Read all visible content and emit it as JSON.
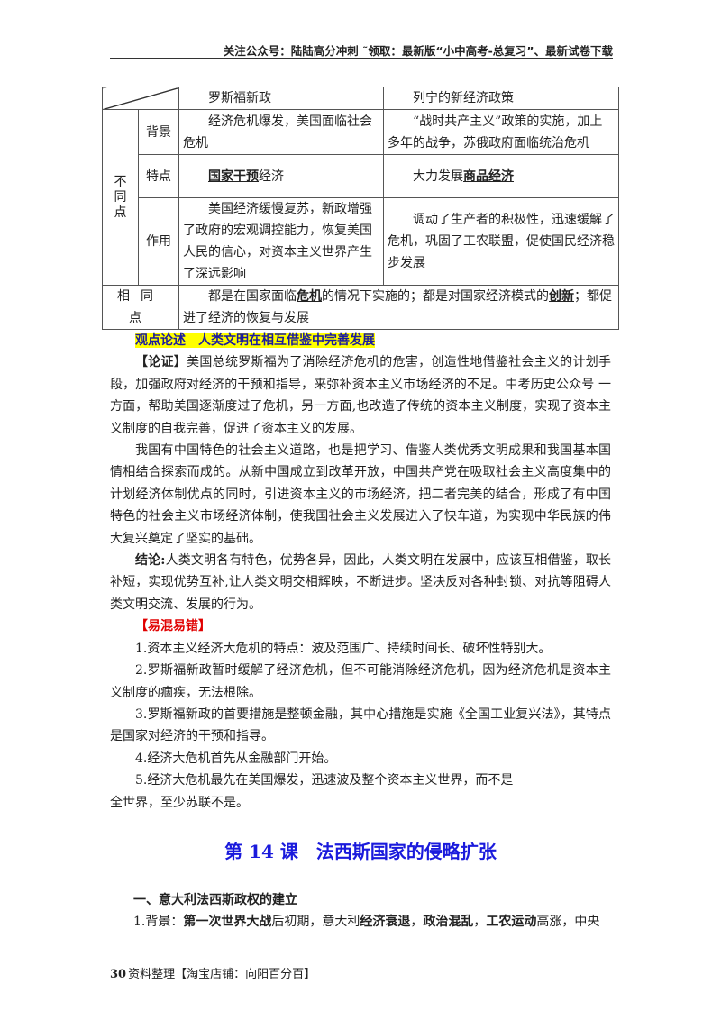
{
  "header": {
    "text": "关注公众号：陆陆高分冲刺 ˜领取：最新版“小中高考-总复习”、最新试卷下载"
  },
  "table": {
    "col_roosevelt": "罗斯福新政",
    "col_lenin": "列宁的新经济政策",
    "group_diff": "不同点",
    "rows": [
      {
        "label": "背景",
        "roosevelt": "经济危机爆发，美国面临社会危机",
        "lenin": "“战时共产主义”政策的实施，加上多年的战争，苏俄政府面临统治危机"
      },
      {
        "label": "特点",
        "roosevelt_bold": "国家干预",
        "roosevelt_rest": "经济",
        "lenin_pre": "大力发展",
        "lenin_bold": "商品经济"
      },
      {
        "label": "作用",
        "roosevelt": "美国经济缓慢复苏，新政增强了政府的宏观调控能力，恢复美国人民的信心，对资本主义世界产生了深远影响",
        "lenin": "调动了生产者的积极性，迅速缓解了危机，巩固了工农联盟，促使国民经济稳步发展"
      }
    ],
    "same": {
      "label": "相同点",
      "t1": "都是在国家面临",
      "b1": "危机",
      "t2": "的情况下实施的；都是对国家经济模式的",
      "b2": "创新",
      "t3": "；都促进了经济的恢复与发展"
    }
  },
  "viewpoint": {
    "heading": "观点论述　人类文明在相互借鉴中完善发展",
    "argument_label": "【论证】",
    "argument": "美国总统罗斯福为了消除经济危机的危害，创造性地借鉴社会主义的计划手段，加强政府对经济的干预和指导，来弥补资本主义市场经济的不足。中考历史公众号 一方面，帮助美国逐渐度过了危机，另一方面,也改造了传统的资本主义制度，实现了资本主义制度的自我完善，促进了资本主义的发展。",
    "para2": "我国有中国特色的社会主义道路，也是把学习、借鉴人类优秀文明成果和我国基本国情相结合探索而成的。从新中国成立到改革开放，中国共产党在吸取社会主义高度集中的计划经济体制优点的同时，引进资本主义的市场经济，把二者完美的结合，形成了有中国特色的社会主义市场经济体制，使我国社会主义发展进入了快车道，为实现中华民族的伟大复兴奠定了坚实的基础。",
    "conclusion_label": "结论:",
    "conclusion": "人类文明各有特色，优势各异，因此，人类文明在发展中，应该互相借鉴，取长补短，实现优势互补,让人类文明交相辉映，不断进步。坚决反对各种封锁、对抗等阻碍人类文明交流、发展的行为。"
  },
  "mistakes": {
    "heading": "【易混易错】",
    "items": [
      "1.资本主义经济大危机的特点：波及范围广、持续时间长、破坏性特别大。",
      "2.罗斯福新政暂时缓解了经济危机，但不可能消除经济危机，因为经济危机是资本主义制度的痼疾，无法根除。",
      "3.罗斯福新政的首要措施是整顿金融，其中心措施是实施《全国工业复兴法》，其特点是国家对经济的干预和指导。",
      "4.经济大危机首先从金融部门开始。",
      "5.经济大危机最先在美国爆发，迅速波及整个资本主义世界，而不是",
      "全世界，至少苏联不是。"
    ]
  },
  "lesson": {
    "title": "第 14 课　法西斯国家的侵略扩张",
    "section": "一、意大利法西斯政权的建立",
    "bg": {
      "pre": "1.背景：",
      "b1": "第一次世界大战",
      "t1": "后初期，意大利",
      "b2": "经济衰退",
      "t2": "，",
      "b3": "政治混乱",
      "t3": "，",
      "b4": "工农运动",
      "t4": "高涨，中央"
    }
  },
  "footer": {
    "page": "30",
    "text": "资料整理【淘宝店铺：向阳百分百】"
  }
}
